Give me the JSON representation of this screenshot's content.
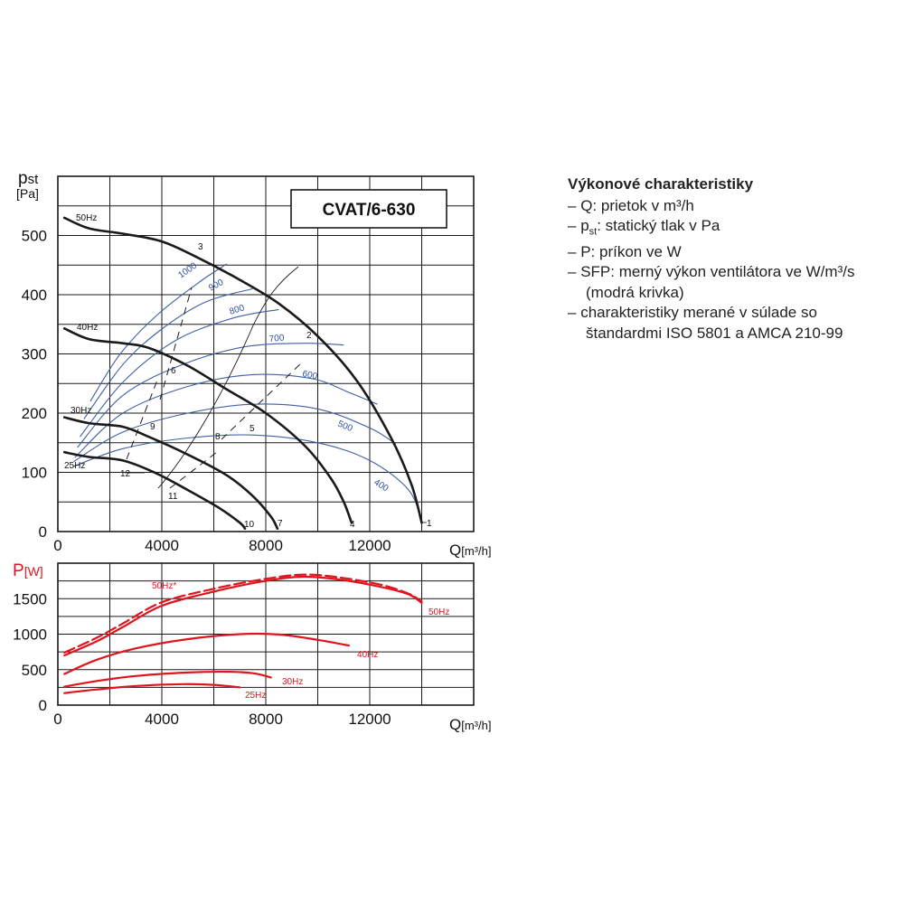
{
  "chart_data": [
    {
      "type": "line",
      "title": "CVAT/6-630",
      "ylabel_main": "p",
      "ylabel_sub": "st",
      "ylabel_unit": "[Pa]",
      "xlabel_main": "Q",
      "xlabel_unit": "[m³/h]",
      "xlim": [
        0,
        16000
      ],
      "ylim": [
        0,
        600
      ],
      "x_ticks": [
        "0",
        "4000",
        "8000",
        "12000"
      ],
      "y_ticks": [
        "0",
        "100",
        "200",
        "300",
        "400",
        "500"
      ],
      "x_tick_values": [
        0,
        4000,
        8000,
        12000
      ],
      "y_tick_values": [
        0,
        100,
        200,
        300,
        400,
        500
      ],
      "grid": true,
      "series": [
        {
          "name": "50Hz",
          "color": "#1a1a1a",
          "points": [
            [
              250,
              530
            ],
            [
              1200,
              512
            ],
            [
              2500,
              503
            ],
            [
              4000,
              490
            ],
            [
              5500,
              460
            ],
            [
              7000,
              425
            ],
            [
              8500,
              385
            ],
            [
              10000,
              330
            ],
            [
              11500,
              255
            ],
            [
              12800,
              160
            ],
            [
              13600,
              80
            ],
            [
              14000,
              15
            ]
          ]
        },
        {
          "name": "40Hz",
          "color": "#1a1a1a",
          "points": [
            [
              250,
              343
            ],
            [
              1200,
              325
            ],
            [
              2500,
              318
            ],
            [
              3500,
              310
            ],
            [
              5000,
              280
            ],
            [
              6500,
              240
            ],
            [
              8000,
              200
            ],
            [
              9500,
              145
            ],
            [
              10500,
              90
            ],
            [
              11000,
              50
            ],
            [
              11300,
              15
            ]
          ]
        },
        {
          "name": "30Hz",
          "color": "#1a1a1a",
          "points": [
            [
              250,
              193
            ],
            [
              1200,
              183
            ],
            [
              2500,
              177
            ],
            [
              3500,
              160
            ],
            [
              5000,
              130
            ],
            [
              6500,
              95
            ],
            [
              7500,
              60
            ],
            [
              8200,
              25
            ],
            [
              8450,
              5
            ]
          ]
        },
        {
          "name": "25Hz",
          "color": "#1a1a1a",
          "points": [
            [
              250,
              134
            ],
            [
              1200,
              126
            ],
            [
              2500,
              120
            ],
            [
              3800,
              98
            ],
            [
              5000,
              70
            ],
            [
              6200,
              40
            ],
            [
              7000,
              15
            ],
            [
              7200,
              5
            ]
          ]
        }
      ],
      "sfp_series": [
        {
          "name": "1000",
          "color": "#3f5fa6",
          "points": [
            [
              1250,
              220
            ],
            [
              2400,
              300
            ],
            [
              3800,
              365
            ],
            [
              5400,
              420
            ],
            [
              6500,
              452
            ]
          ]
        },
        {
          "name": "900",
          "color": "#3f5fa6",
          "points": [
            [
              1000,
              190
            ],
            [
              2500,
              282
            ],
            [
              4000,
              342
            ],
            [
              5700,
              388
            ],
            [
              7500,
              410
            ]
          ]
        },
        {
          "name": "800",
          "color": "#3f5fa6",
          "points": [
            [
              850,
              160
            ],
            [
              2500,
              252
            ],
            [
              4500,
              322
            ],
            [
              6700,
              360
            ],
            [
              8500,
              375
            ]
          ]
        },
        {
          "name": "700",
          "color": "#3f5fa6",
          "points": [
            [
              750,
              142
            ],
            [
              2500,
              230
            ],
            [
              4800,
              282
            ],
            [
              7200,
              312
            ],
            [
              9500,
              318
            ],
            [
              11000,
              315
            ]
          ]
        },
        {
          "name": "600",
          "color": "#3f5fa6",
          "points": [
            [
              650,
              125
            ],
            [
              2500,
              200
            ],
            [
              5000,
              245
            ],
            [
              7500,
              265
            ],
            [
              9800,
              258
            ],
            [
              11200,
              235
            ],
            [
              12300,
              215
            ]
          ]
        },
        {
          "name": "500",
          "color": "#3f5fa6",
          "points": [
            [
              600,
              118
            ],
            [
              2500,
              168
            ],
            [
              5000,
              200
            ],
            [
              7500,
              215
            ],
            [
              10000,
              207
            ],
            [
              12000,
              175
            ],
            [
              13000,
              148
            ]
          ]
        },
        {
          "name": "400",
          "color": "#3f5fa6",
          "points": [
            [
              600,
              110
            ],
            [
              2500,
              140
            ],
            [
              5000,
              158
            ],
            [
              7500,
              163
            ],
            [
              10000,
              150
            ],
            [
              12000,
              120
            ],
            [
              13500,
              70
            ],
            [
              14000,
              15
            ]
          ]
        }
      ],
      "line_labels": [
        "1",
        "2",
        "3",
        "4",
        "5",
        "6",
        "7",
        "8",
        "9",
        "10",
        "11",
        "12"
      ]
    },
    {
      "type": "line",
      "ylabel_main": "P",
      "ylabel_unit": "[W]",
      "xlabel_main": "Q",
      "xlabel_unit": "[m³/h]",
      "xlim": [
        0,
        16000
      ],
      "ylim": [
        0,
        2000
      ],
      "x_ticks": [
        "0",
        "4000",
        "8000",
        "12000"
      ],
      "y_ticks": [
        "0",
        "500",
        "1000",
        "1500"
      ],
      "x_tick_values": [
        0,
        4000,
        8000,
        12000
      ],
      "y_tick_values": [
        0,
        500,
        1000,
        1500
      ],
      "grid": true,
      "series": [
        {
          "name": "50Hz",
          "color": "#e0141e",
          "dashed": false,
          "points": [
            [
              250,
              700
            ],
            [
              1500,
              900
            ],
            [
              2500,
              1100
            ],
            [
              4000,
              1400
            ],
            [
              6000,
              1600
            ],
            [
              8000,
              1750
            ],
            [
              9500,
              1810
            ],
            [
              11000,
              1760
            ],
            [
              12500,
              1660
            ],
            [
              13500,
              1560
            ],
            [
              14000,
              1440
            ]
          ]
        },
        {
          "name": "50Hz*",
          "color": "#e0141e",
          "dashed": true,
          "points": [
            [
              250,
              740
            ],
            [
              1500,
              950
            ],
            [
              2500,
              1150
            ],
            [
              4000,
              1450
            ],
            [
              6000,
              1640
            ],
            [
              8000,
              1780
            ],
            [
              9500,
              1840
            ],
            [
              11000,
              1790
            ],
            [
              12500,
              1690
            ],
            [
              13500,
              1570
            ],
            [
              14000,
              1460
            ]
          ]
        },
        {
          "name": "40Hz",
          "color": "#e0141e",
          "dashed": false,
          "points": [
            [
              250,
              440
            ],
            [
              1500,
              640
            ],
            [
              3000,
              800
            ],
            [
              5000,
              930
            ],
            [
              7000,
              1000
            ],
            [
              8500,
              995
            ],
            [
              10000,
              920
            ],
            [
              11200,
              840
            ]
          ]
        },
        {
          "name": "30Hz",
          "color": "#e0141e",
          "dashed": false,
          "points": [
            [
              250,
              260
            ],
            [
              1500,
              340
            ],
            [
              3000,
              410
            ],
            [
              5000,
              460
            ],
            [
              6500,
              470
            ],
            [
              7500,
              450
            ],
            [
              8200,
              390
            ]
          ]
        },
        {
          "name": "25Hz",
          "color": "#e0141e",
          "dashed": false,
          "points": [
            [
              250,
              170
            ],
            [
              1500,
              220
            ],
            [
              3000,
              270
            ],
            [
              4800,
              295
            ],
            [
              6000,
              285
            ],
            [
              7000,
              250
            ]
          ]
        }
      ],
      "labels": [
        "50Hz*",
        "50Hz",
        "40Hz",
        "30Hz",
        "25Hz"
      ]
    }
  ],
  "legend": {
    "title": "Výkonové charakteristiky",
    "lines": [
      {
        "dash": "–",
        "text": "Q: prietok v m³/h"
      },
      {
        "dash": "–",
        "prefix": "p",
        "sub": "st",
        "text": ": statický tlak v Pa"
      },
      {
        "dash": "–",
        "text": "P: príkon ve W"
      },
      {
        "dash": "–",
        "text": "SFP:  merný výkon ventilátora ve W/m³/s"
      },
      {
        "dash": "",
        "text": "(modrá krivka)",
        "continuation": true
      },
      {
        "dash": "–",
        "text": "charakteristiky merané v súlade so"
      },
      {
        "dash": "",
        "text": "štandardmi ISO 5801 a AMCA 210-99",
        "continuation": true
      }
    ]
  }
}
